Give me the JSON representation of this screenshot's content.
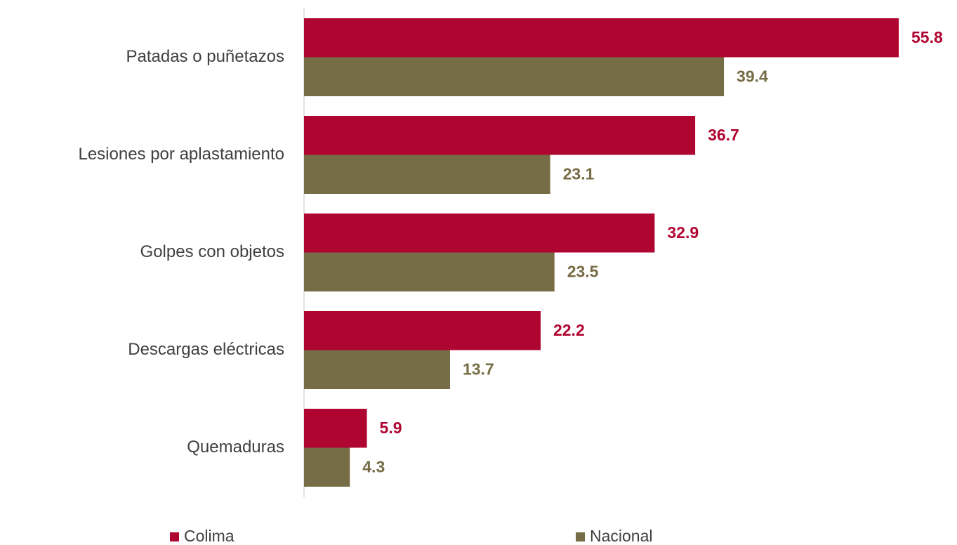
{
  "chart_data": {
    "type": "bar",
    "orientation": "horizontal",
    "categories": [
      "Patadas o puñetazos",
      "Lesiones por aplastamiento",
      "Golpes con objetos",
      "Descargas eléctricas",
      "Quemaduras"
    ],
    "series": [
      {
        "name": "Colima",
        "color": "#AF0631",
        "values": [
          55.8,
          36.7,
          32.9,
          22.2,
          5.9
        ]
      },
      {
        "name": "Nacional",
        "color": "#766C45",
        "values": [
          39.4,
          23.1,
          23.5,
          13.7,
          4.3
        ]
      }
    ]
  }
}
